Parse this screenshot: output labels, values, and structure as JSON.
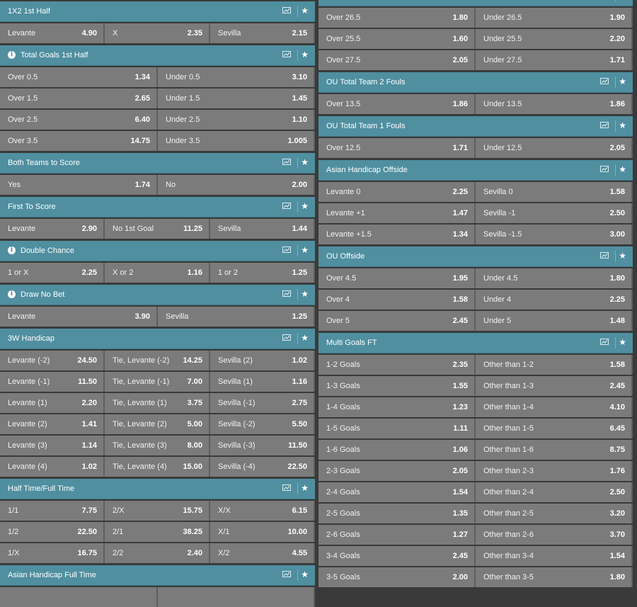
{
  "left_column": [
    {
      "title": "1X2 1st Half",
      "info": false,
      "rows": [
        [
          [
            "Levante",
            "4.90"
          ],
          [
            "X",
            "2.35"
          ],
          [
            "Sevilla",
            "2.15"
          ]
        ]
      ]
    },
    {
      "title": "Total Goals 1st Half",
      "info": true,
      "rows": [
        [
          [
            "Over 0.5",
            "1.34"
          ],
          [
            "Under 0.5",
            "3.10"
          ]
        ],
        [
          [
            "Over 1.5",
            "2.65"
          ],
          [
            "Under 1.5",
            "1.45"
          ]
        ],
        [
          [
            "Over 2.5",
            "6.40"
          ],
          [
            "Under 2.5",
            "1.10"
          ]
        ],
        [
          [
            "Over 3.5",
            "14.75"
          ],
          [
            "Under 3.5",
            "1.005"
          ]
        ]
      ]
    },
    {
      "title": "Both Teams to Score",
      "info": false,
      "rows": [
        [
          [
            "Yes",
            "1.74"
          ],
          [
            "No",
            "2.00"
          ]
        ]
      ]
    },
    {
      "title": "First To Score",
      "info": false,
      "rows": [
        [
          [
            "Levante",
            "2.90"
          ],
          [
            "No 1st Goal",
            "11.25"
          ],
          [
            "Sevilla",
            "1.44"
          ]
        ]
      ]
    },
    {
      "title": "Double Chance",
      "info": true,
      "rows": [
        [
          [
            "1 or X",
            "2.25"
          ],
          [
            "X or 2",
            "1.16"
          ],
          [
            "1 or 2",
            "1.25"
          ]
        ]
      ]
    },
    {
      "title": "Draw No Bet",
      "info": true,
      "rows": [
        [
          [
            "Levante",
            "3.90"
          ],
          [
            "Sevilla",
            "1.25"
          ]
        ]
      ]
    },
    {
      "title": "3W Handicap",
      "info": false,
      "rows": [
        [
          [
            "Levante (-2)",
            "24.50"
          ],
          [
            "Tie, Levante (-2)",
            "14.25"
          ],
          [
            "Sevilla (2)",
            "1.02"
          ]
        ],
        [
          [
            "Levante (-1)",
            "11.50"
          ],
          [
            "Tie, Levante (-1)",
            "7.00"
          ],
          [
            "Sevilla (1)",
            "1.16"
          ]
        ],
        [
          [
            "Levante (1)",
            "2.20"
          ],
          [
            "Tie, Levante (1)",
            "3.75"
          ],
          [
            "Sevilla (-1)",
            "2.75"
          ]
        ],
        [
          [
            "Levante (2)",
            "1.41"
          ],
          [
            "Tie, Levante (2)",
            "5.00"
          ],
          [
            "Sevilla (-2)",
            "5.50"
          ]
        ],
        [
          [
            "Levante (3)",
            "1.14"
          ],
          [
            "Tie, Levante (3)",
            "8.00"
          ],
          [
            "Sevilla (-3)",
            "11.50"
          ]
        ],
        [
          [
            "Levante (4)",
            "1.02"
          ],
          [
            "Tie, Levante (4)",
            "15.00"
          ],
          [
            "Sevilla (-4)",
            "22.50"
          ]
        ]
      ]
    },
    {
      "title": "Half Time/Full Time",
      "info": false,
      "rows": [
        [
          [
            "1/1",
            "7.75"
          ],
          [
            "2/X",
            "15.75"
          ],
          [
            "X/X",
            "6.15"
          ]
        ],
        [
          [
            "1/2",
            "22.50"
          ],
          [
            "2/1",
            "38.25"
          ],
          [
            "X/1",
            "10.00"
          ]
        ],
        [
          [
            "1/X",
            "16.75"
          ],
          [
            "2/2",
            "2.40"
          ],
          [
            "X/2",
            "4.55"
          ]
        ]
      ]
    },
    {
      "title": "Asian Handicap Full Time",
      "info": false,
      "rows": [
        [
          [
            "",
            ""
          ],
          [
            "",
            ""
          ]
        ]
      ]
    }
  ],
  "right_column": [
    {
      "title": "",
      "info": false,
      "rows": [
        [
          [
            "Over 26.5",
            "1.80"
          ],
          [
            "Under 26.5",
            "1.90"
          ]
        ],
        [
          [
            "Over 25.5",
            "1.60"
          ],
          [
            "Under 25.5",
            "2.20"
          ]
        ],
        [
          [
            "Over 27.5",
            "2.05"
          ],
          [
            "Under 27.5",
            "1.71"
          ]
        ]
      ]
    },
    {
      "title": "OU Total Team 2 Fouls",
      "info": false,
      "rows": [
        [
          [
            "Over 13.5",
            "1.86"
          ],
          [
            "Under 13.5",
            "1.86"
          ]
        ]
      ]
    },
    {
      "title": "OU Total Team 1 Fouls",
      "info": false,
      "rows": [
        [
          [
            "Over 12.5",
            "1.71"
          ],
          [
            "Under 12.5",
            "2.05"
          ]
        ]
      ]
    },
    {
      "title": "Asian Handicap Offside",
      "info": false,
      "rows": [
        [
          [
            "Levante 0",
            "2.25"
          ],
          [
            "Sevilla 0",
            "1.58"
          ]
        ],
        [
          [
            "Levante +1",
            "1.47"
          ],
          [
            "Sevilla -1",
            "2.50"
          ]
        ],
        [
          [
            "Levante +1.5",
            "1.34"
          ],
          [
            "Sevilla -1.5",
            "3.00"
          ]
        ]
      ]
    },
    {
      "title": "OU Offside",
      "info": false,
      "rows": [
        [
          [
            "Over 4.5",
            "1.95"
          ],
          [
            "Under 4.5",
            "1.80"
          ]
        ],
        [
          [
            "Over 4",
            "1.58"
          ],
          [
            "Under 4",
            "2.25"
          ]
        ],
        [
          [
            "Over 5",
            "2.45"
          ],
          [
            "Under 5",
            "1.48"
          ]
        ]
      ]
    },
    {
      "title": "Multi Goals FT",
      "info": false,
      "rows": [
        [
          [
            "1-2 Goals",
            "2.35"
          ],
          [
            "Other than 1-2",
            "1.58"
          ]
        ],
        [
          [
            "1-3 Goals",
            "1.55"
          ],
          [
            "Other than 1-3",
            "2.45"
          ]
        ],
        [
          [
            "1-4 Goals",
            "1.23"
          ],
          [
            "Other than 1-4",
            "4.10"
          ]
        ],
        [
          [
            "1-5 Goals",
            "1.11"
          ],
          [
            "Other than 1-5",
            "6.45"
          ]
        ],
        [
          [
            "1-6 Goals",
            "1.06"
          ],
          [
            "Other than 1-6",
            "8.75"
          ]
        ],
        [
          [
            "2-3 Goals",
            "2.05"
          ],
          [
            "Other than 2-3",
            "1.76"
          ]
        ],
        [
          [
            "2-4 Goals",
            "1.54"
          ],
          [
            "Other than 2-4",
            "2.50"
          ]
        ],
        [
          [
            "2-5 Goals",
            "1.35"
          ],
          [
            "Other than 2-5",
            "3.20"
          ]
        ],
        [
          [
            "2-6 Goals",
            "1.27"
          ],
          [
            "Other than 2-6",
            "3.70"
          ]
        ],
        [
          [
            "3-4 Goals",
            "2.45"
          ],
          [
            "Other than 3-4",
            "1.54"
          ]
        ],
        [
          [
            "3-5 Goals",
            "2.00"
          ],
          [
            "Other than 3-5",
            "1.80"
          ]
        ]
      ]
    }
  ],
  "icons": {
    "header_stats": "bar-chart-icon",
    "header_favorite": "star-icon",
    "header_info": "info-icon"
  },
  "colors": {
    "header_bg": "#4f8fa0",
    "cell_bg": "#7b7b7b",
    "page_bg": "#3a3a3a"
  }
}
